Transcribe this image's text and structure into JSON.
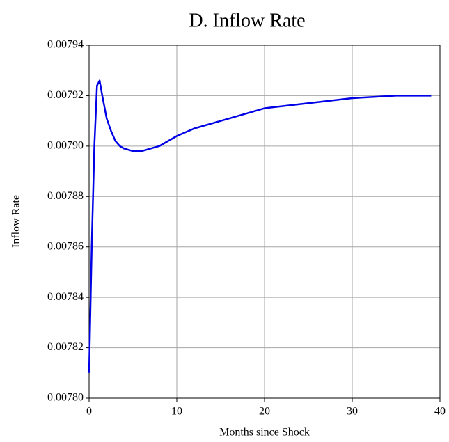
{
  "chart_data": {
    "type": "line",
    "title": "D.  Inflow Rate",
    "x_label": "Months since Shock",
    "y_label": "Inflow Rate",
    "x": [
      0,
      0.3,
      0.6,
      0.9,
      1.2,
      1.5,
      2,
      2.5,
      3,
      3.5,
      4,
      5,
      6,
      7,
      8,
      10,
      12,
      15,
      18,
      20,
      25,
      30,
      35,
      39
    ],
    "series": [
      {
        "name": "Inflow Rate",
        "color": "#0000e6",
        "values": [
          0.00781,
          0.00786,
          0.0079,
          0.007924,
          0.007926,
          0.00792,
          0.007911,
          0.007906,
          0.007902,
          0.0079,
          0.007899,
          0.007898,
          0.007898,
          0.007899,
          0.0079,
          0.007904,
          0.007907,
          0.00791,
          0.007913,
          0.007915,
          0.007917,
          0.007919,
          0.00792,
          0.00792
        ]
      }
    ],
    "xlim": [
      0,
      40
    ],
    "xticks": [
      0,
      10,
      20,
      30,
      40
    ],
    "ylim": [
      0.0078,
      0.00794
    ],
    "yticks": [
      {
        "value": 0.0078,
        "label": "0.00780"
      },
      0.00782,
      0.00784,
      0.00786,
      0.00788,
      {
        "value": 0.0079,
        "label": "0.00790"
      },
      0.00792,
      0.00794
    ],
    "grid": true
  }
}
